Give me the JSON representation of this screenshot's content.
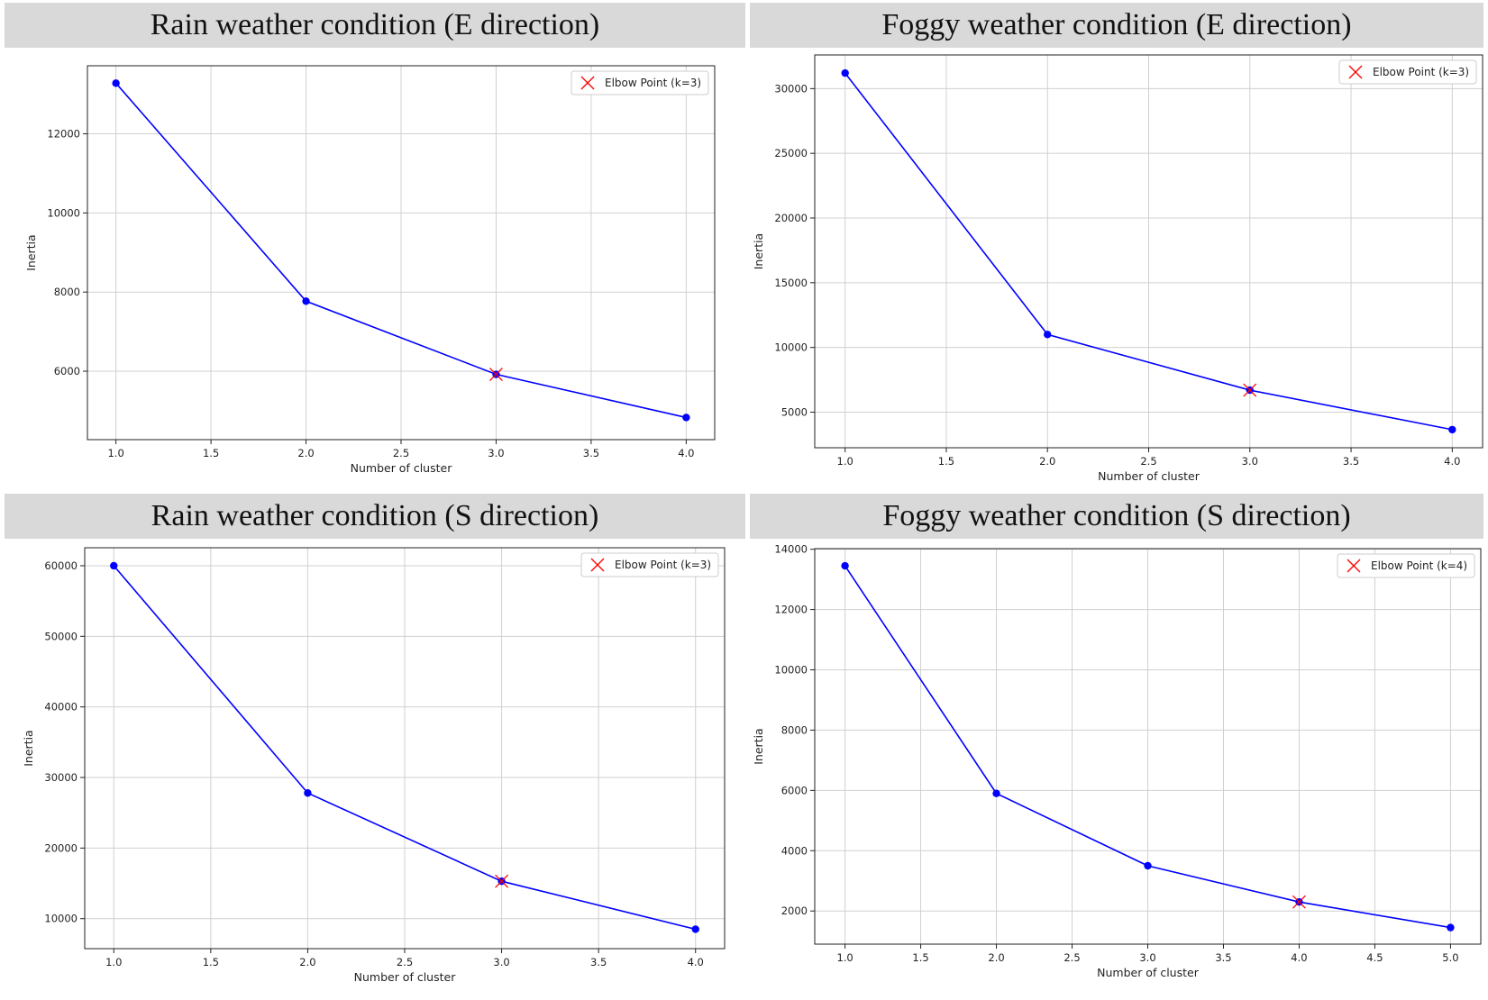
{
  "panels": [
    {
      "title": "Rain weather condition (E direction)",
      "chart_data": {
        "type": "line",
        "x": [
          1.0,
          2.0,
          3.0,
          4.0
        ],
        "y": [
          13280,
          7770,
          5920,
          4830
        ],
        "xlabel": "Number of cluster",
        "ylabel": "Inertia",
        "xlim": [
          0.85,
          4.15
        ],
        "ylim": [
          4270,
          13720
        ],
        "xticks": [
          1.0,
          1.5,
          2.0,
          2.5,
          3.0,
          3.5,
          4.0
        ],
        "xtick_labels": [
          "1.0",
          "1.5",
          "2.0",
          "2.5",
          "3.0",
          "3.5",
          "4.0"
        ],
        "yticks": [
          6000,
          8000,
          10000,
          12000
        ],
        "ytick_labels": [
          "6000",
          "8000",
          "10000",
          "12000"
        ],
        "elbow": {
          "x": 3.0,
          "y": 5920
        },
        "legend": "Elbow Point (k=3)",
        "legend_loc": "top-right",
        "grid": true,
        "line_color": "#0000ff",
        "marker_color": "#ff0000"
      }
    },
    {
      "title": "Foggy weather condition (E direction)",
      "chart_data": {
        "type": "line",
        "x": [
          1.0,
          2.0,
          3.0,
          4.0
        ],
        "y": [
          31200,
          11000,
          6700,
          3650
        ],
        "xlabel": "Number of cluster",
        "ylabel": "Inertia",
        "xlim": [
          0.85,
          4.15
        ],
        "ylim": [
          2250,
          32600
        ],
        "xticks": [
          1.0,
          1.5,
          2.0,
          2.5,
          3.0,
          3.5,
          4.0
        ],
        "xtick_labels": [
          "1.0",
          "1.5",
          "2.0",
          "2.5",
          "3.0",
          "3.5",
          "4.0"
        ],
        "yticks": [
          5000,
          10000,
          15000,
          20000,
          25000,
          30000
        ],
        "ytick_labels": [
          "5000",
          "10000",
          "15000",
          "20000",
          "25000",
          "30000"
        ],
        "elbow": {
          "x": 3.0,
          "y": 6700
        },
        "legend": "Elbow Point (k=3)",
        "legend_loc": "top-right",
        "grid": true,
        "line_color": "#0000ff",
        "marker_color": "#ff0000"
      }
    },
    {
      "title": "Rain weather condition (S direction)",
      "chart_data": {
        "type": "line",
        "x": [
          1.0,
          2.0,
          3.0,
          4.0
        ],
        "y": [
          60000,
          27800,
          15300,
          8500
        ],
        "xlabel": "Number of cluster",
        "ylabel": "Inertia",
        "xlim": [
          0.85,
          4.15
        ],
        "ylim": [
          5750,
          62550
        ],
        "xticks": [
          1.0,
          1.5,
          2.0,
          2.5,
          3.0,
          3.5,
          4.0
        ],
        "xtick_labels": [
          "1.0",
          "1.5",
          "2.0",
          "2.5",
          "3.0",
          "3.5",
          "4.0"
        ],
        "yticks": [
          10000,
          20000,
          30000,
          40000,
          50000,
          60000
        ],
        "ytick_labels": [
          "10000",
          "20000",
          "30000",
          "40000",
          "50000",
          "60000"
        ],
        "elbow": {
          "x": 3.0,
          "y": 15300
        },
        "legend": "Elbow Point (k=3)",
        "legend_loc": "top-right",
        "grid": true,
        "line_color": "#0000ff",
        "marker_color": "#ff0000"
      }
    },
    {
      "title": "Foggy weather condition (S direction)",
      "chart_data": {
        "type": "line",
        "x": [
          1.0,
          2.0,
          3.0,
          4.0,
          5.0
        ],
        "y": [
          13450,
          5900,
          3500,
          2300,
          1450
        ],
        "xlabel": "Number of cluster",
        "ylabel": "Inertia",
        "xlim": [
          0.8,
          5.2
        ],
        "ylim": [
          900,
          14020
        ],
        "xticks": [
          1.0,
          1.5,
          2.0,
          2.5,
          3.0,
          3.5,
          4.0,
          4.5,
          5.0
        ],
        "xtick_labels": [
          "1.0",
          "1.5",
          "2.0",
          "2.5",
          "3.0",
          "3.5",
          "4.0",
          "4.5",
          "5.0"
        ],
        "yticks": [
          2000,
          4000,
          6000,
          8000,
          10000,
          12000,
          14000
        ],
        "ytick_labels": [
          "2000",
          "4000",
          "6000",
          "8000",
          "10000",
          "12000",
          "14000"
        ],
        "elbow": {
          "x": 4.0,
          "y": 2300
        },
        "legend": "Elbow Point (k=4)",
        "legend_loc": "top-right",
        "grid": true,
        "line_color": "#0000ff",
        "marker_color": "#ff0000"
      }
    }
  ]
}
